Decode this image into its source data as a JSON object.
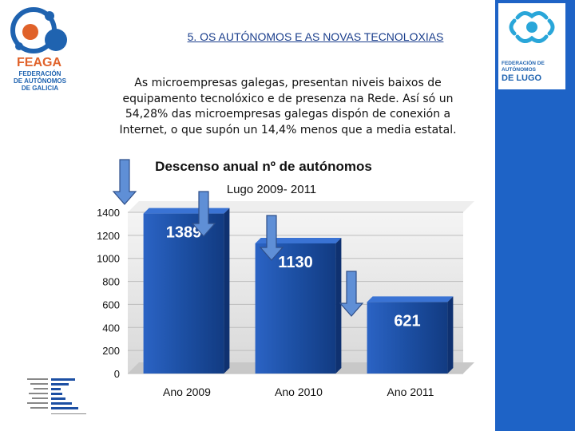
{
  "title": "5. OS AUTÓNOMOS E AS NOVAS TECNOLOXIAS",
  "paragraph": "As microempresas galegas, presentan niveis baixos de equipamento tecnolóxico e de presenza na Rede. Así só un 54,28% das microempresas galegas dispón de conexión a Internet, o que supón un 14,4%  menos que a media estatal.",
  "left_logo": {
    "name": "FEAGA",
    "lines": [
      "FEDERACIÓN",
      "DE AUTÓNOMOS",
      "DE GALICIA"
    ]
  },
  "right_logo": {
    "lines": [
      "FEDERACIÓN DE",
      "AUTÓNOMOS"
    ],
    "big": "DE LUGO"
  },
  "colors": {
    "accent_blue": "#1e63c6",
    "bar_blue": "#1c4fa3",
    "arrow_blue": "#5f8fd6",
    "feaga_orange": "#e0622a"
  },
  "chart_data": {
    "type": "bar",
    "title": "Descenso anual nº de autónomos",
    "subtitle": "Lugo 2009- 2011",
    "categories": [
      "Ano 2009",
      "Ano 2010",
      "Ano 2011"
    ],
    "values": [
      1389,
      1130,
      621
    ],
    "value_labels": [
      "1389",
      "1130",
      "621"
    ],
    "ylim": [
      0,
      1400
    ],
    "yticks": [
      0,
      200,
      400,
      600,
      800,
      1000,
      1200,
      1400
    ],
    "xlabel": "",
    "ylabel": "",
    "grid": true
  }
}
